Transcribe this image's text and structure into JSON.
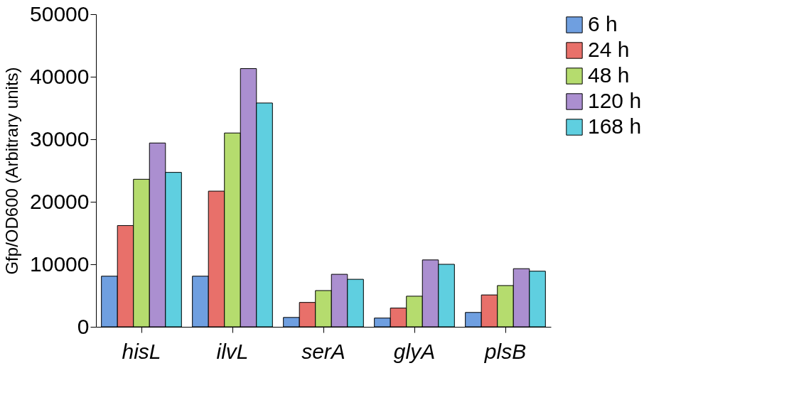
{
  "chart_data": {
    "type": "bar",
    "ylabel": "Gfp/OD600 (Arbitrary units)",
    "categories": [
      "hisL",
      "ilvL",
      "serA",
      "glyA",
      "plsB"
    ],
    "series": [
      {
        "name": "6 h",
        "color": "#6f9fe0",
        "values": [
          8100,
          8100,
          1500,
          1400,
          2300
        ]
      },
      {
        "name": "24 h",
        "color": "#e8706a",
        "values": [
          16200,
          21700,
          3900,
          3000,
          5100
        ]
      },
      {
        "name": "48 h",
        "color": "#b5dc6e",
        "values": [
          23600,
          31000,
          5800,
          4900,
          6600
        ]
      },
      {
        "name": "120 h",
        "color": "#ab8fd0",
        "values": [
          29400,
          41300,
          8400,
          10700,
          9300
        ]
      },
      {
        "name": "168 h",
        "color": "#5fcfe0",
        "values": [
          24700,
          35800,
          7600,
          10000,
          8900
        ]
      }
    ],
    "ylim": [
      0,
      50000
    ],
    "yticks": [
      0,
      10000,
      20000,
      30000,
      40000,
      50000
    ],
    "grid": false,
    "legend": "right"
  }
}
